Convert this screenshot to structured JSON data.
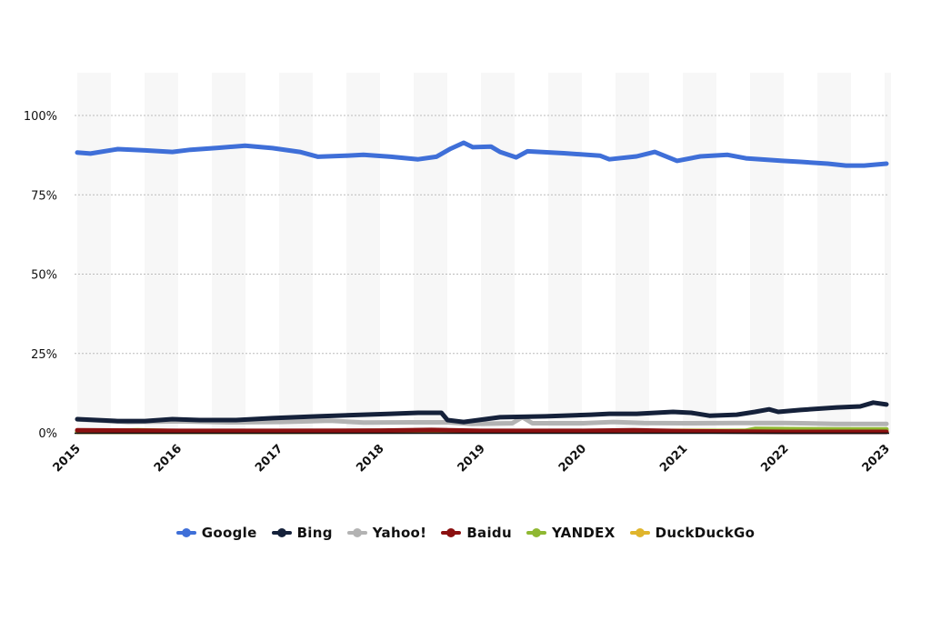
{
  "chart_data": {
    "type": "line",
    "title": "",
    "xlabel": "",
    "ylabel": "",
    "xlim": [
      2015,
      2023
    ],
    "ylim": [
      0,
      110
    ],
    "y_ticks": [
      {
        "v": 0,
        "label": "0%"
      },
      {
        "v": 25,
        "label": "25%"
      },
      {
        "v": 50,
        "label": "50%"
      },
      {
        "v": 75,
        "label": "75%"
      },
      {
        "v": 100,
        "label": "100%"
      }
    ],
    "x_ticks": [
      {
        "v": 2015,
        "label": "2015"
      },
      {
        "v": 2016,
        "label": "2016"
      },
      {
        "v": 2017,
        "label": "2017"
      },
      {
        "v": 2018,
        "label": "2018"
      },
      {
        "v": 2019,
        "label": "2019"
      },
      {
        "v": 2020,
        "label": "2020"
      },
      {
        "v": 2021,
        "label": "2021"
      },
      {
        "v": 2022,
        "label": "2022"
      },
      {
        "v": 2023,
        "label": "2023"
      }
    ],
    "grid": true,
    "legend_position": "bottom",
    "series": [
      {
        "name": "Google",
        "color": "#3f6fd8",
        "x": [
          2015.0,
          2015.13,
          2015.4,
          2015.67,
          2015.94,
          2016.12,
          2016.39,
          2016.66,
          2016.93,
          2017.2,
          2017.38,
          2017.65,
          2017.83,
          2018.1,
          2018.37,
          2018.55,
          2018.69,
          2018.82,
          2018.91,
          2019.09,
          2019.18,
          2019.34,
          2019.45,
          2019.81,
          2020.17,
          2020.26,
          2020.53,
          2020.71,
          2020.93,
          2021.16,
          2021.43,
          2021.61,
          2021.97,
          2022.15,
          2022.42,
          2022.6,
          2022.78,
          2023.0
        ],
        "y": [
          88.3,
          88,
          89.4,
          89,
          88.5,
          89.2,
          89.8,
          90.5,
          89.7,
          88.5,
          87,
          87.3,
          87.6,
          87,
          86.2,
          87,
          89.5,
          91.4,
          90,
          90.2,
          88.5,
          86.8,
          88.7,
          88.1,
          87.3,
          86.2,
          87.1,
          88.5,
          85.7,
          87.1,
          87.6,
          86.5,
          85.7,
          85.4,
          84.8,
          84.2,
          84.2,
          84.8
        ]
      },
      {
        "name": "Bing",
        "color": "#15213a",
        "x": [
          2015.0,
          2015.4,
          2015.67,
          2015.94,
          2016.21,
          2016.57,
          2016.93,
          2017.38,
          2017.83,
          2018.1,
          2018.37,
          2018.6,
          2018.66,
          2018.82,
          2019.18,
          2019.63,
          2020.08,
          2020.26,
          2020.53,
          2020.89,
          2021.07,
          2021.25,
          2021.52,
          2021.7,
          2021.84,
          2021.93,
          2022.15,
          2022.51,
          2022.74,
          2022.87,
          2023.0
        ],
        "y": [
          4.3,
          3.7,
          3.7,
          4.3,
          4.0,
          4.0,
          4.6,
          5.2,
          5.7,
          6.0,
          6.3,
          6.3,
          4.0,
          3.4,
          4.9,
          5.2,
          5.7,
          6.0,
          6.0,
          6.6,
          6.3,
          5.4,
          5.7,
          6.6,
          7.4,
          6.6,
          7.2,
          8.0,
          8.3,
          9.5,
          8.9
        ]
      },
      {
        "name": "Yahoo!",
        "color": "#b3b3b3",
        "x": [
          2015.0,
          2015.5,
          2016.0,
          2016.5,
          2017.0,
          2017.5,
          2017.83,
          2018.3,
          2018.66,
          2018.9,
          2019.3,
          2019.4,
          2019.5,
          2020.0,
          2020.3,
          2020.6,
          2021.0,
          2021.5,
          2022.0,
          2022.5,
          2023.0
        ],
        "y": [
          4.2,
          3.4,
          3.6,
          3.3,
          3.4,
          3.8,
          3.2,
          3.3,
          3.3,
          2.8,
          3.0,
          4.9,
          3.0,
          3.0,
          3.4,
          3.1,
          3.0,
          3.1,
          3.1,
          2.8,
          2.8
        ]
      },
      {
        "name": "Baidu",
        "color": "#8b1010",
        "x": [
          2015.0,
          2016.0,
          2017.0,
          2018.0,
          2018.5,
          2019.0,
          2020.0,
          2020.5,
          2021.0,
          2022.0,
          2023.0
        ],
        "y": [
          0.8,
          0.6,
          0.6,
          0.7,
          0.9,
          0.6,
          0.6,
          0.8,
          0.5,
          0.3,
          0.3
        ]
      },
      {
        "name": "YANDEX",
        "color": "#8fb832",
        "x": [
          2015.0,
          2015.6,
          2016.0,
          2017.0,
          2018.0,
          2019.0,
          2020.0,
          2021.0,
          2021.6,
          2021.7,
          2022.5,
          2023.0
        ],
        "y": [
          0.4,
          0.8,
          0.5,
          0.5,
          0.6,
          0.5,
          0.5,
          0.5,
          0.6,
          1.2,
          1.1,
          1.1
        ]
      },
      {
        "name": "DuckDuckGo",
        "color": "#e0b52c",
        "x": [
          2015.0,
          2016.0,
          2017.0,
          2018.0,
          2019.0,
          2020.0,
          2021.0,
          2022.0,
          2023.0
        ],
        "y": [
          0.3,
          0.3,
          0.3,
          0.4,
          0.5,
          0.5,
          0.6,
          0.6,
          0.6
        ]
      }
    ]
  }
}
